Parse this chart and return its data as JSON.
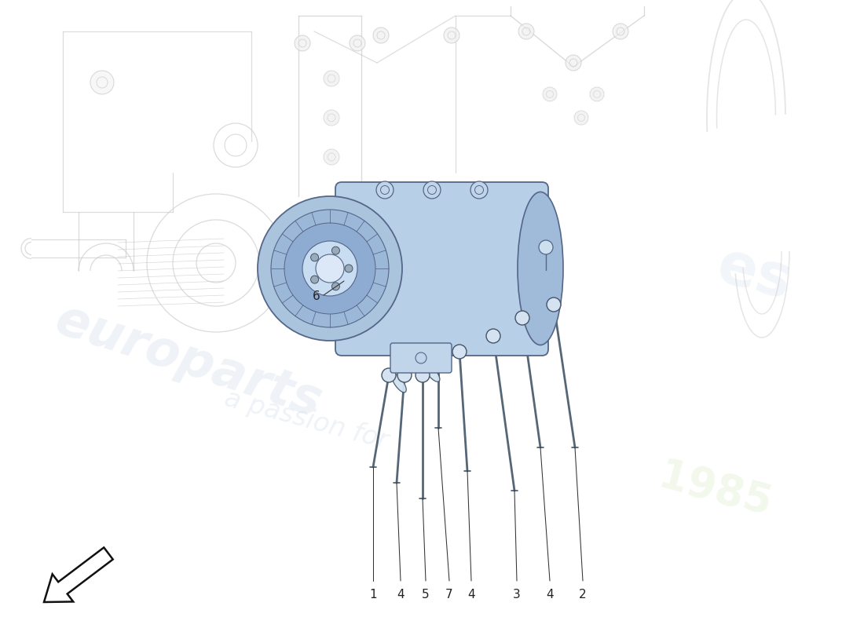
{
  "bg": "#ffffff",
  "ll": "#cccccc",
  "lm": "#999999",
  "ld": "#444444",
  "cf": "#b8d0e8",
  "ce": "#556688",
  "label_color": "#222222",
  "label_size": 11,
  "part_labels": [
    "1",
    "4",
    "5",
    "7",
    "4",
    "3",
    "4",
    "2"
  ],
  "wm1": "europarts",
  "wm2": "a passion for",
  "wm3": "1985"
}
